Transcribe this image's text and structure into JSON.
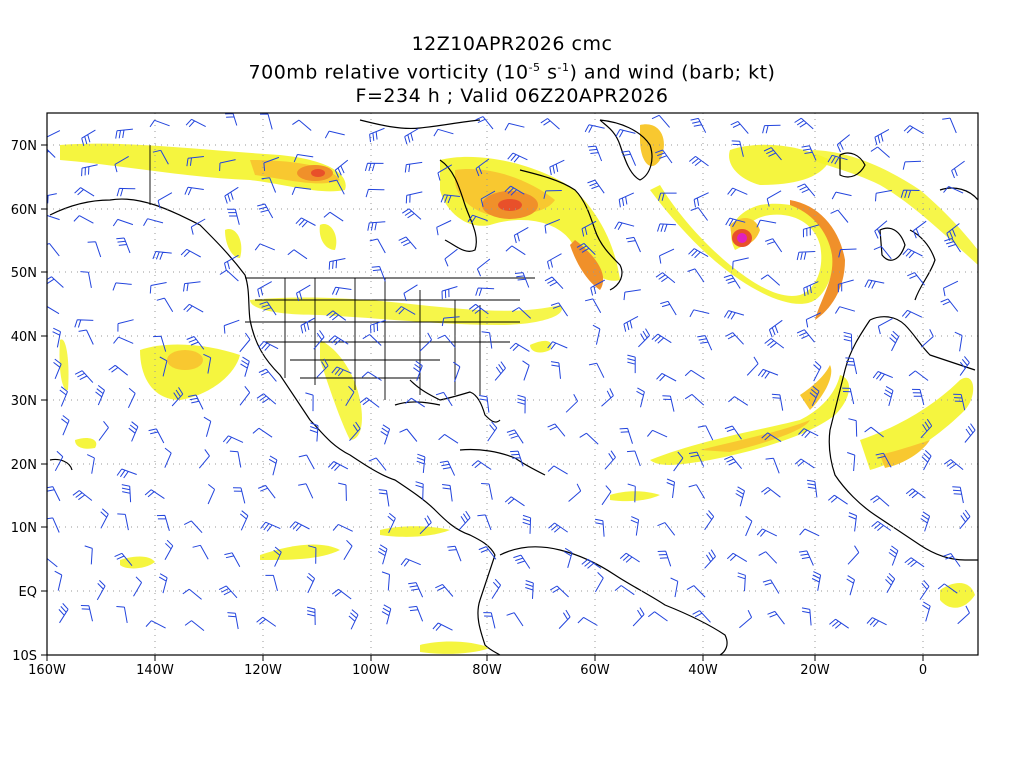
{
  "titles": {
    "line1": "12Z10APR2026 cmc",
    "line2_a": "700mb relative vorticity (10",
    "line2_sup1": "-5",
    "line2_b": " s",
    "line2_sup2": "-1",
    "line2_c": ") and wind (barb; kt)",
    "line3": "F=234 h ; Valid 06Z20APR2026"
  },
  "axes": {
    "lon_labels": [
      "160W",
      "140W",
      "120W",
      "100W",
      "80W",
      "60W",
      "40W",
      "20W",
      "0"
    ],
    "lat_labels": [
      "70N",
      "60N",
      "50N",
      "40N",
      "30N",
      "20N",
      "10N",
      "EQ",
      "10S"
    ]
  },
  "colors": {
    "vort_low": "#f4f42a",
    "vort_mid": "#f8c830",
    "vort_high": "#f0902a",
    "vort_higher": "#e8502a",
    "vort_max": "#e020c0",
    "barb": "#2244dd",
    "coast": "#000000",
    "grid": "#999999"
  }
}
